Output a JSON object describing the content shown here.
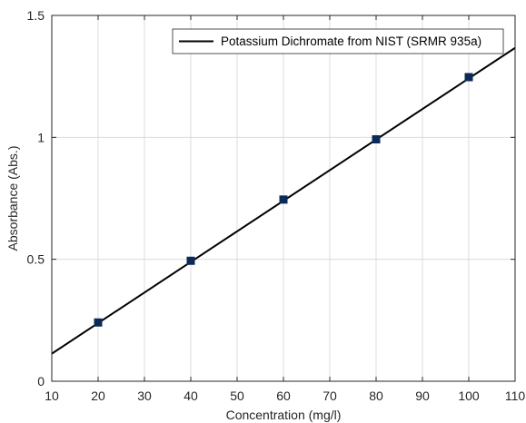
{
  "chart_data": {
    "type": "line",
    "title": "",
    "xlabel": "Concentration (mg/l)",
    "ylabel": "Absorbance (Abs.)",
    "xlim": [
      10,
      110
    ],
    "ylim": [
      0,
      1.5
    ],
    "xticks": [
      10,
      20,
      30,
      40,
      50,
      60,
      70,
      80,
      90,
      100,
      110
    ],
    "yticks": [
      0,
      0.5,
      1,
      1.5
    ],
    "ytick_labels": [
      "0",
      "0.5",
      "1",
      "1.5"
    ],
    "grid": true,
    "legend_position": "top-right",
    "series": [
      {
        "name": "Potassium Dichromate from NIST (SRMR 935a)",
        "kind": "fit-line",
        "color": "#000000",
        "x": [
          10,
          110
        ],
        "y": [
          0.113,
          1.367
        ]
      },
      {
        "kind": "markers",
        "marker": "square",
        "color": "#0b2a57",
        "x": [
          20,
          40,
          60,
          80,
          100
        ],
        "y": [
          0.241,
          0.494,
          0.745,
          0.992,
          1.247
        ]
      }
    ]
  }
}
